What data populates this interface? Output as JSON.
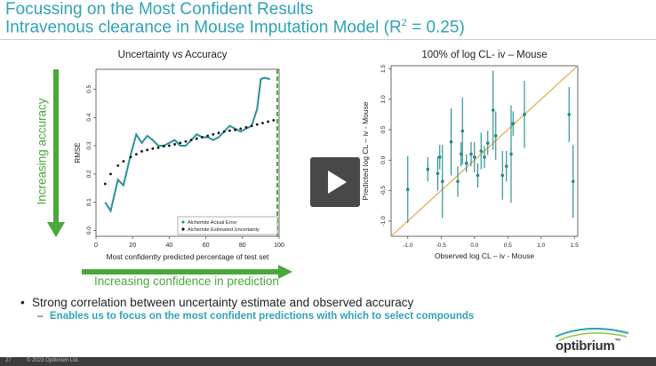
{
  "slide": {
    "title_line1": "Focussing on the Most Confident Results",
    "title_line2_prefix": "Intravenous clearance in Mouse Imputation Model (R",
    "title_line2_sup": "2",
    "title_line2_suffix": " = 0.25)",
    "left_chart_title": "Uncertainty vs Accuracy",
    "right_chart_title": "100% of log CL- iv – Mouse",
    "increasing_accuracy": "Increasing accuracy",
    "increasing_confidence": "Increasing confidence in prediction",
    "bullet": "Strong correlation between uncertainty estimate and observed accuracy",
    "subbullet_dash": "–",
    "subbullet": "Enables us to focus on the most confident predictions with which to select compounds",
    "footer_page": "27",
    "footer_copyright": "© 2023 Optibrium Ltd.",
    "logo_text": "optibrium",
    "logo_tm": "™"
  },
  "colors": {
    "title": "#2fa3b8",
    "green": "#4aa83b",
    "teal_series": "#2f8f98",
    "dots": "#111111",
    "diagonal": "#e8b96a",
    "scatter": "#1f8a8a"
  },
  "chart_data": [
    {
      "type": "line",
      "title": "Uncertainty vs Accuracy",
      "xlabel": "Most confidently predicted percentage of test set",
      "ylabel": "RMSE",
      "xlim": [
        0,
        100
      ],
      "ylim": [
        -0.02,
        0.57
      ],
      "xticks": [
        0,
        20,
        40,
        60,
        80,
        100
      ],
      "xtick_labels": [
        "0",
        "20",
        "40",
        "60",
        "80",
        "100"
      ],
      "yticks": [
        0.0,
        0.1,
        0.2,
        0.3,
        0.4,
        0.5
      ],
      "ytick_labels": [
        "0.0",
        "0.1",
        "0.2",
        "0.3",
        "0.4",
        "0.5"
      ],
      "vline_x": 99,
      "legend": "bottom-right",
      "series": [
        {
          "name": "Alchemite Actual Error",
          "style": "line",
          "x": [
            5,
            8,
            12,
            15,
            19,
            22,
            25,
            28,
            31,
            34,
            37,
            40,
            43,
            46,
            49,
            52,
            55,
            58,
            61,
            64,
            67,
            70,
            73,
            76,
            79,
            82,
            85,
            88,
            90,
            92,
            95
          ],
          "y": [
            0.1,
            0.07,
            0.18,
            0.16,
            0.27,
            0.34,
            0.31,
            0.335,
            0.32,
            0.3,
            0.3,
            0.31,
            0.32,
            0.3,
            0.3,
            0.32,
            0.34,
            0.33,
            0.33,
            0.32,
            0.33,
            0.35,
            0.37,
            0.36,
            0.35,
            0.36,
            0.37,
            0.43,
            0.535,
            0.54,
            0.535
          ]
        },
        {
          "name": "Alchemite Estimated Uncertainty",
          "style": "dots",
          "x": [
            5,
            8,
            12,
            15,
            19,
            22,
            25,
            28,
            31,
            34,
            37,
            40,
            43,
            46,
            49,
            52,
            55,
            58,
            61,
            64,
            67,
            70,
            73,
            76,
            79,
            82,
            85,
            88,
            91,
            94,
            97
          ],
          "y": [
            0.165,
            0.2,
            0.23,
            0.245,
            0.26,
            0.27,
            0.28,
            0.285,
            0.29,
            0.293,
            0.298,
            0.3,
            0.305,
            0.31,
            0.315,
            0.32,
            0.325,
            0.33,
            0.335,
            0.34,
            0.345,
            0.35,
            0.353,
            0.356,
            0.36,
            0.365,
            0.37,
            0.375,
            0.38,
            0.385,
            0.39
          ]
        }
      ]
    },
    {
      "type": "scatter",
      "title": "100% of log CL- iv – Mouse",
      "xlabel": "Observed log CL – iv - Mouse",
      "ylabel": "Predicted log CL – iv - Mouse",
      "xlim": [
        -1.25,
        1.55
      ],
      "ylim": [
        -1.25,
        1.55
      ],
      "xticks": [
        -1.0,
        -0.5,
        0.0,
        0.5,
        1.0,
        1.5
      ],
      "xtick_labels": [
        "-1.0",
        "-0.5",
        "0.0",
        "0.5",
        "1.0",
        "1.5"
      ],
      "yticks": [
        -1.0,
        -0.5,
        0.0,
        0.5,
        1.0,
        1.5
      ],
      "ytick_labels": [
        "-1.0",
        "-0.5",
        "0.0",
        "0.5",
        "1.0",
        "1.5"
      ],
      "diagonal": true,
      "points": [
        {
          "x": -1.0,
          "y": -0.48,
          "err": 0.55
        },
        {
          "x": -0.7,
          "y": -0.15,
          "err": 0.2
        },
        {
          "x": -0.55,
          "y": -0.22,
          "err": 0.28
        },
        {
          "x": -0.52,
          "y": 0.05,
          "err": 0.2
        },
        {
          "x": -0.48,
          "y": -0.35,
          "err": 0.6
        },
        {
          "x": -0.35,
          "y": 0.3,
          "err": 0.55
        },
        {
          "x": -0.25,
          "y": -0.35,
          "err": 0.25
        },
        {
          "x": -0.2,
          "y": 0.1,
          "err": 0.2
        },
        {
          "x": -0.18,
          "y": 0.48,
          "err": 0.55
        },
        {
          "x": -0.12,
          "y": -0.05,
          "err": 0.15
        },
        {
          "x": -0.05,
          "y": 0.1,
          "err": 0.2
        },
        {
          "x": 0.0,
          "y": 0.05,
          "err": 0.25
        },
        {
          "x": 0.05,
          "y": -0.25,
          "err": 0.2
        },
        {
          "x": 0.1,
          "y": 0.15,
          "err": 0.3
        },
        {
          "x": 0.15,
          "y": 0.05,
          "err": 0.18
        },
        {
          "x": 0.2,
          "y": 0.28,
          "err": 0.2
        },
        {
          "x": 0.28,
          "y": 0.82,
          "err": 0.65
        },
        {
          "x": 0.32,
          "y": 0.4,
          "err": 0.4
        },
        {
          "x": 0.42,
          "y": -0.25,
          "err": 0.4
        },
        {
          "x": 0.48,
          "y": -0.1,
          "err": 0.25
        },
        {
          "x": 0.55,
          "y": 0.1,
          "err": 0.8
        },
        {
          "x": 0.58,
          "y": 0.6,
          "err": 0.2
        },
        {
          "x": 0.75,
          "y": 0.75,
          "err": 0.55
        },
        {
          "x": 1.42,
          "y": 0.75,
          "err": 0.45
        },
        {
          "x": 1.48,
          "y": -0.35,
          "err": 0.6
        }
      ]
    }
  ]
}
